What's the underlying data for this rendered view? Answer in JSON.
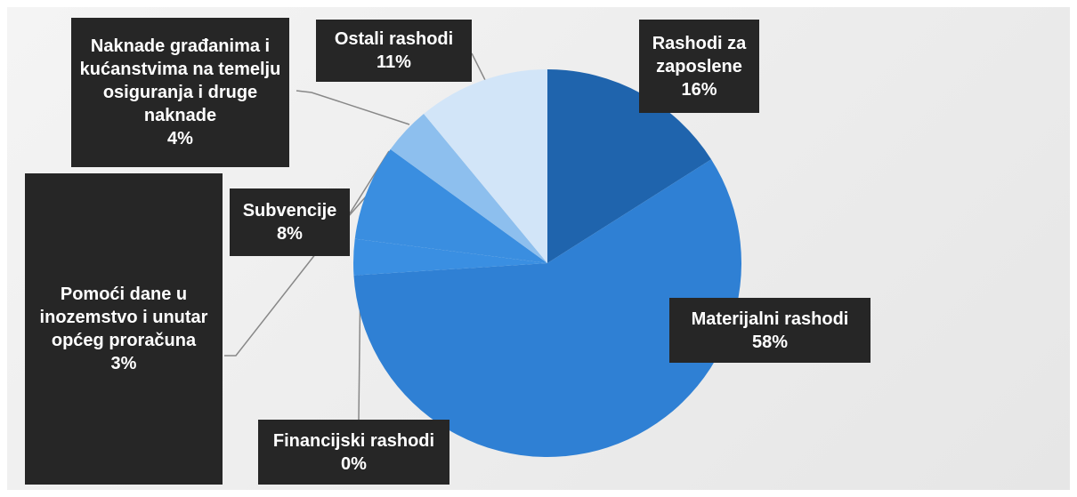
{
  "chart_data": {
    "type": "pie",
    "categories": [
      "Rashodi za zaposlene",
      "Materijalni rashodi",
      "Financijski rashodi",
      "Pomoći dane u inozemstvo i unutar općeg proračuna",
      "Subvencije",
      "Naknade građanima i kućanstvima na temelju osiguranja i druge naknade",
      "Ostali rashodi"
    ],
    "values": [
      16,
      58,
      0,
      3,
      8,
      4,
      11
    ],
    "value_labels": [
      "16%",
      "58%",
      "0%",
      "3%",
      "8%",
      "4%",
      "11%"
    ],
    "colors": [
      "#1f64ad",
      "#2f80d4",
      "#2f80d4",
      "#3a8fe2",
      "#3a8ee0",
      "#8dbfee",
      "#d2e5f8"
    ]
  }
}
